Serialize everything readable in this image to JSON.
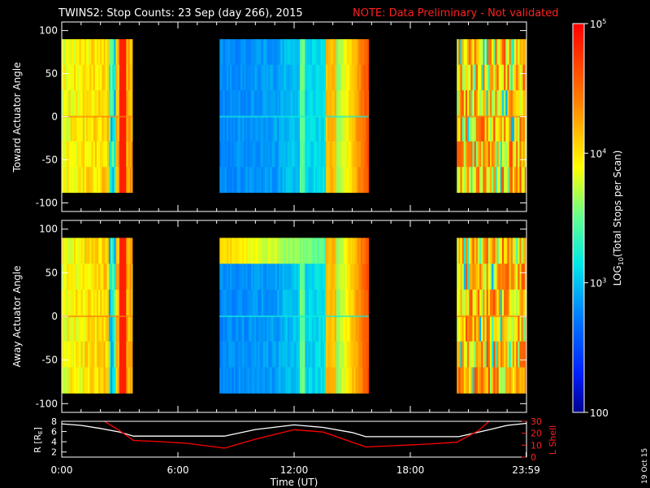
{
  "header": {
    "title": "TWINS2: Stop Counts: 23 Sep (day 266), 2015",
    "note": "NOTE: Data Preliminary - Not validated"
  },
  "stamp": "19 Oct 15",
  "colorbar": {
    "label_prefix": "LOG",
    "label_sub": "10",
    "label_suffix": "(Total Stops per Scan)",
    "ticks": [
      {
        "label": "100",
        "value": 100
      },
      {
        "label": "10",
        "sup": "3",
        "value": 1000
      },
      {
        "label": "10",
        "sup": "4",
        "value": 10000
      },
      {
        "label": "10",
        "sup": "5",
        "value": 100000
      }
    ]
  },
  "chart_data": [
    {
      "type": "heatmap",
      "panel": "toward",
      "ylabel": "Toward Actuator Angle",
      "ylim": [
        -110,
        110
      ],
      "yticks": [
        {
          "label": "100",
          "value": 100
        },
        {
          "label": "50",
          "value": 50
        },
        {
          "label": "0",
          "value": 0
        },
        {
          "label": "-50",
          "value": -50
        },
        {
          "label": "-100",
          "value": -100
        }
      ],
      "angle_range": [
        -88,
        90
      ],
      "data_blocks": [
        {
          "start": 0.0,
          "end": 3.65,
          "level": "high"
        },
        {
          "start": 8.15,
          "end": 15.85,
          "level": "low-mid"
        },
        {
          "start": 20.4,
          "end": 24.0,
          "level": "high-striped"
        }
      ]
    },
    {
      "type": "heatmap",
      "panel": "away",
      "ylabel": "Away Actuator Angle",
      "ylim": [
        -110,
        110
      ],
      "yticks": [
        {
          "label": "100",
          "value": 100
        },
        {
          "label": "50",
          "value": 50
        },
        {
          "label": "0",
          "value": 0
        },
        {
          "label": "-50",
          "value": -50
        },
        {
          "label": "-100",
          "value": -100
        }
      ],
      "angle_range": [
        -88,
        90
      ],
      "data_blocks": [
        {
          "start": 0.0,
          "end": 3.65,
          "level": "high"
        },
        {
          "start": 8.15,
          "end": 15.85,
          "level": "low-mid"
        },
        {
          "start": 20.4,
          "end": 24.0,
          "level": "high-striped"
        }
      ]
    },
    {
      "type": "line",
      "panel": "ephemeris",
      "ylabel": "R [R",
      "ylabel_sub": "E",
      "ylabel_close": "]",
      "y2label": "L Shell",
      "ylim": [
        1,
        8
      ],
      "y2lim": [
        0,
        30
      ],
      "yticks": [
        "2",
        "4",
        "6",
        "8"
      ],
      "y2ticks": [
        "0",
        "10",
        "20",
        "30"
      ],
      "xlabel": "Time (UT)",
      "xlim": [
        0,
        24
      ],
      "xticks": [
        {
          "label": "0:00",
          "value": 0
        },
        {
          "label": "6:00",
          "value": 6
        },
        {
          "label": "12:00",
          "value": 12
        },
        {
          "label": "18:00",
          "value": 18
        },
        {
          "label": "23:59",
          "value": 23.98
        }
      ],
      "series": [
        {
          "color": "#ffffff",
          "axis": "left",
          "x": [
            0,
            1,
            2,
            3,
            3.7,
            5,
            6,
            7,
            8.4,
            10,
            12,
            13.5,
            15,
            15.7,
            17,
            19,
            20.5,
            22,
            23,
            24
          ],
          "y": [
            7.5,
            7.2,
            6.6,
            5.9,
            5.1,
            5.1,
            5.1,
            5.1,
            5.1,
            6.4,
            7.3,
            6.8,
            5.8,
            5.0,
            5.0,
            5.0,
            5.0,
            6.3,
            7.2,
            7.6
          ]
        },
        {
          "color": "#ff0000",
          "axis": "right",
          "x": [
            2.0,
            3.0,
            3.7,
            5.0,
            6.5,
            8.4,
            10.0,
            12.0,
            13.5,
            15.7,
            17.0,
            19.0,
            20.4,
            21.5,
            22.2
          ],
          "y": [
            32,
            22,
            14,
            13,
            11.5,
            7.5,
            15,
            23,
            21,
            8.5,
            9.5,
            11,
            12.5,
            22,
            32
          ]
        }
      ]
    }
  ]
}
